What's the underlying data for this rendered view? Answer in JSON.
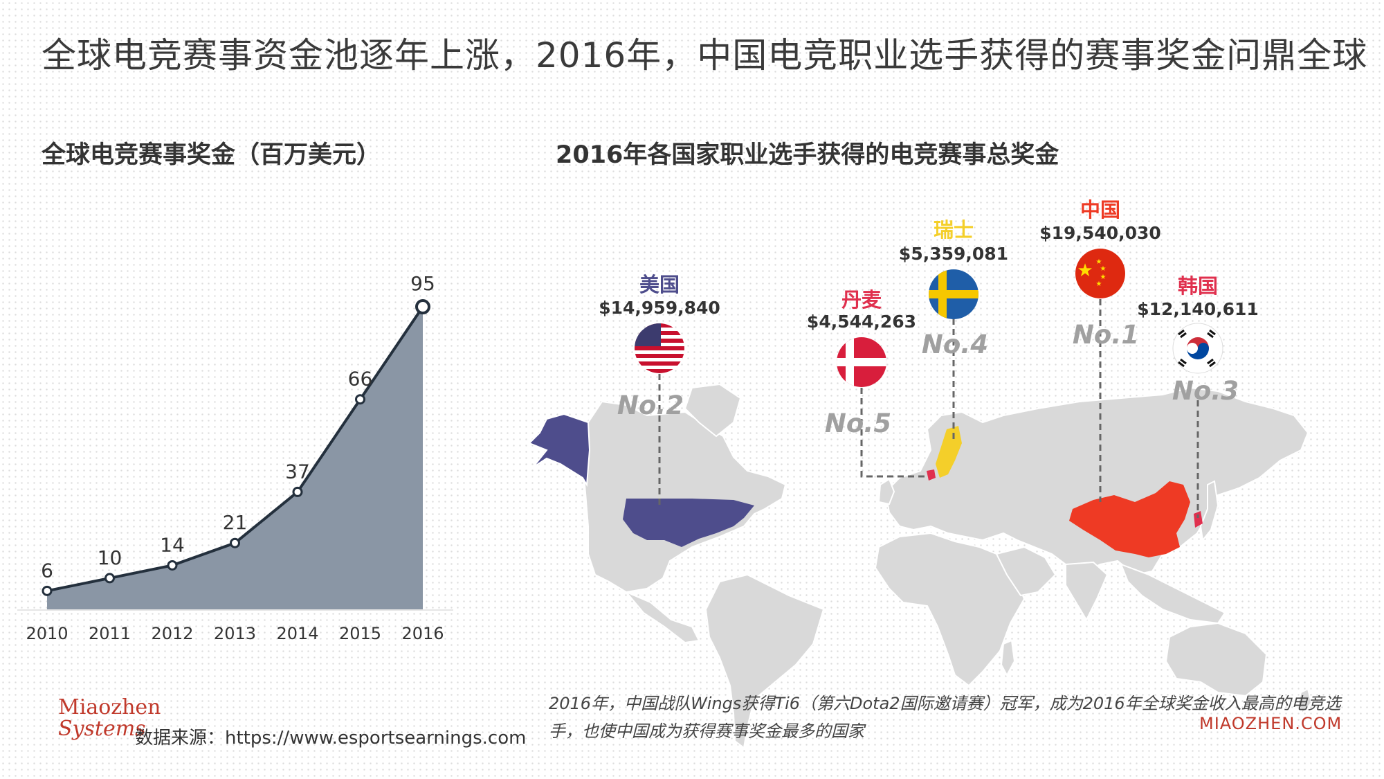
{
  "header": {
    "main_title": "全球电竞赛事资金池逐年上涨，2016年，中国电竞职业选手获得的赛事奖金问鼎全球",
    "left_title": "全球电竞赛事奖金（百万美元）",
    "right_title": "2016年各国家职业选手获得的电竞赛事总奖金"
  },
  "chart_data": {
    "type": "area",
    "title": "全球电竞赛事奖金（百万美元）",
    "categories": [
      "2010",
      "2011",
      "2012",
      "2013",
      "2014",
      "2015",
      "2016"
    ],
    "values": [
      6,
      10,
      14,
      21,
      37,
      66,
      95
    ],
    "value_labels": [
      "6",
      "10",
      "14",
      "21",
      "37",
      "66",
      "95"
    ],
    "xlabel": "",
    "ylabel": "",
    "ylim": [
      0,
      100
    ],
    "grid": false,
    "fill_color": "#8a96a5",
    "line_color": "#24303d"
  },
  "map": {
    "countries": [
      {
        "key": "usa",
        "name": "美国",
        "amount": "$14,959,840",
        "rank": "No.2",
        "color": "#4e4d8c"
      },
      {
        "key": "denmark",
        "name": "丹麦",
        "amount": "$4,544,263",
        "rank": "No.5",
        "color": "#e0304e"
      },
      {
        "key": "sweden",
        "name": "瑞士",
        "amount": "$5,359,081",
        "rank": "No.4",
        "color": "#f4cf2a"
      },
      {
        "key": "china",
        "name": "中国",
        "amount": "$19,540,030",
        "rank": "No.1",
        "color": "#ee3a24"
      },
      {
        "key": "korea",
        "name": "韩国",
        "amount": "$12,140,611",
        "rank": "No.3",
        "color": "#e0304e"
      }
    ],
    "land_color": "#d9d9d9"
  },
  "caption": "2016年，中国战队Wings获得Ti6（第六Dota2国际邀请赛）冠军，成为2016年全球奖金收入最高的电竞选手，也使中国成为获得赛事奖金最多的国家",
  "footer": {
    "logo_line1": "Miaozhen",
    "logo_line2": "Systems",
    "source": "数据来源：https://www.esportsearnings.com",
    "watermark": "MIAOZHEN.COM"
  }
}
